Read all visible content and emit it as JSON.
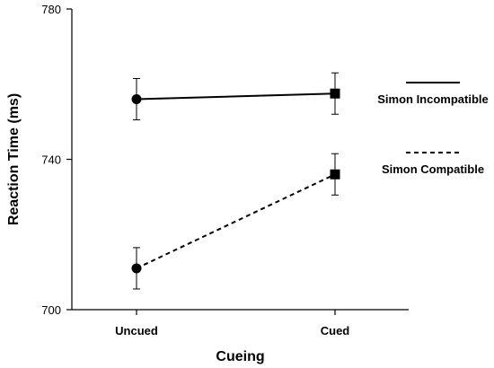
{
  "chart_data": {
    "type": "line",
    "categories": [
      "Uncued",
      "Cued"
    ],
    "xlabel": "Cueing",
    "ylabel": "Reaction Time (ms)",
    "ylim": [
      700,
      780
    ],
    "yticks": [
      700,
      740,
      780
    ],
    "grid": false,
    "legend_position": "right",
    "series": [
      {
        "name": "Simon Incompatible",
        "line_style": "solid",
        "values": [
          756,
          757.5
        ],
        "error": [
          5.5,
          5.5
        ],
        "markers": [
          "circle",
          "square"
        ]
      },
      {
        "name": "Simon Compatible",
        "line_style": "dashed",
        "values": [
          711,
          736
        ],
        "error": [
          5.5,
          5.5
        ],
        "markers": [
          "circle",
          "square"
        ]
      }
    ]
  }
}
